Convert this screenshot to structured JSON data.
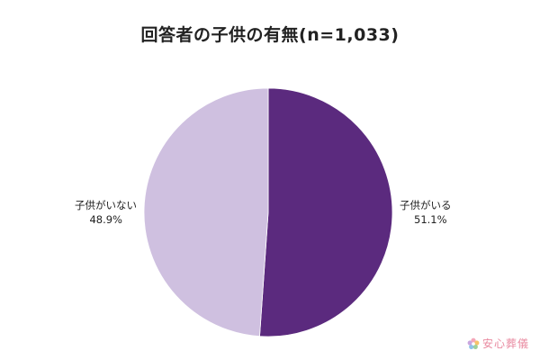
{
  "chart_data": {
    "type": "pie",
    "title": "回答者の子供の有無(n=1,033)",
    "slices": [
      {
        "label": "子供がいる",
        "value": 51.1,
        "value_label": "51.1%",
        "color": "#5b2a7e"
      },
      {
        "label": "子供がいない",
        "value": 48.9,
        "value_label": "48.9%",
        "color": "#cfc0e0"
      }
    ],
    "start_angle_deg": 0,
    "direction": "clockwise"
  },
  "watermark": {
    "text": "安心葬儀",
    "icon": "flower-logo-icon",
    "color": "#e98aa0"
  }
}
